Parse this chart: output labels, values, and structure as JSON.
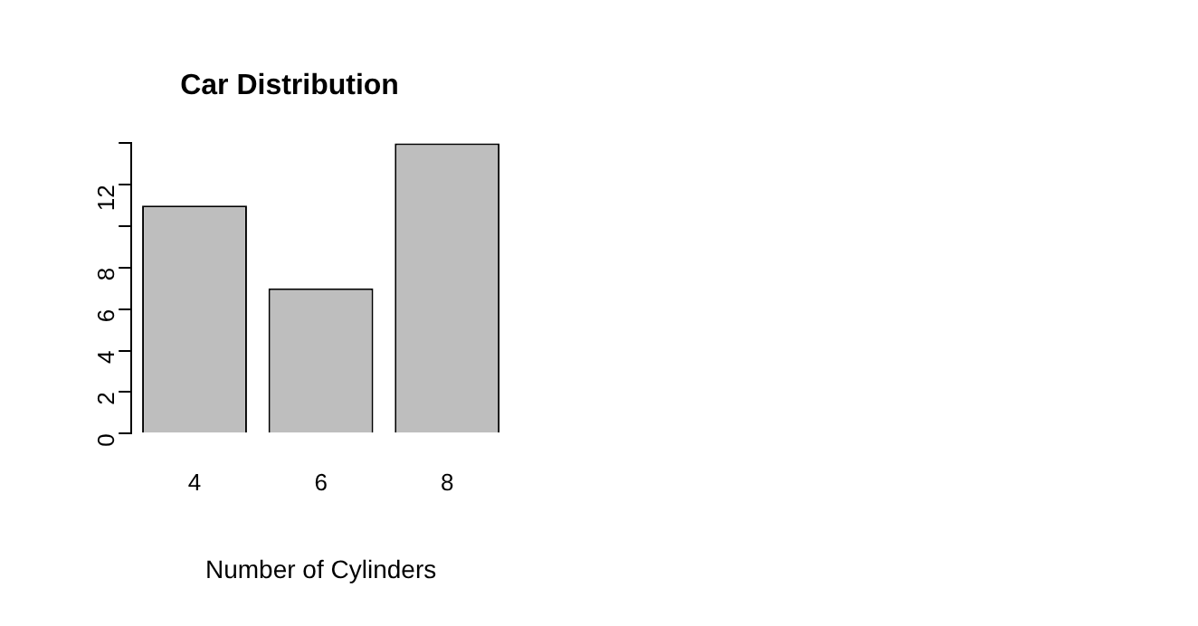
{
  "chart_data": {
    "type": "bar",
    "title": "Car Distribution",
    "xlabel": "Number of Cylinders",
    "categories": [
      "4",
      "6",
      "8"
    ],
    "values": [
      11,
      7,
      14
    ],
    "color": "#bebebe",
    "ylim": [
      0,
      14
    ],
    "yticks": [
      0,
      2,
      4,
      6,
      8,
      {
        "value": 10,
        "label": null
      },
      12,
      {
        "value": 14,
        "label": null
      }
    ],
    "grid": false,
    "legend": false
  }
}
